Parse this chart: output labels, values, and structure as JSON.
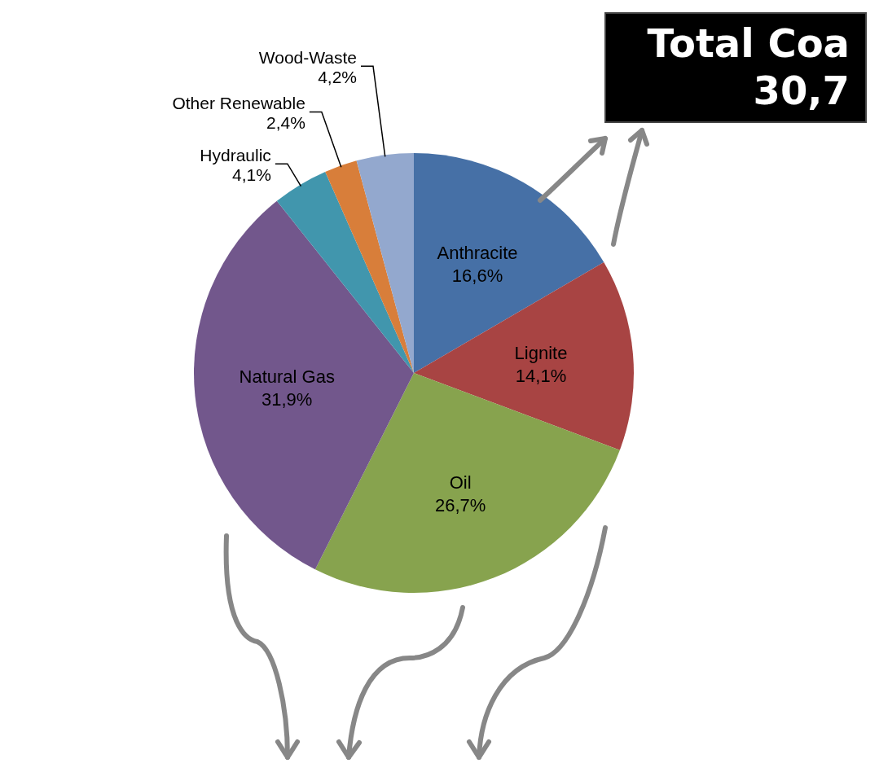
{
  "chart_data": {
    "type": "pie",
    "categories": [
      "Anthracite",
      "Lignite",
      "Oil",
      "Natural Gas",
      "Hydraulic",
      "Other Renewable",
      "Wood-Waste"
    ],
    "values": [
      16.6,
      14.1,
      26.7,
      31.9,
      4.1,
      2.4,
      4.2
    ],
    "colors": [
      "#4670a6",
      "#a84443",
      "#87a34e",
      "#72578c",
      "#4196ad",
      "#d87e3a",
      "#93a8ce"
    ],
    "value_labels": [
      "16,6%",
      "14,1%",
      "26,7%",
      "31,9%",
      "4,1%",
      "2,4%",
      "4,2%"
    ],
    "annotations": [
      "Total Coa",
      "30,7"
    ]
  }
}
